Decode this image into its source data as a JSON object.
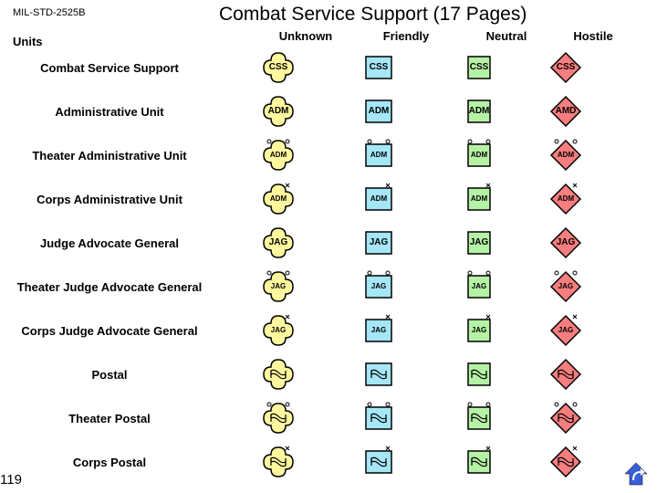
{
  "doc_id": "MIL-STD-2525B",
  "title": "Combat Service Support (17 Pages)",
  "section": "Units",
  "page_num": "119",
  "columns": [
    {
      "key": "unknown",
      "label": "Unknown"
    },
    {
      "key": "friendly",
      "label": "Friendly"
    },
    {
      "key": "neutral",
      "label": "Neutral"
    },
    {
      "key": "hostile",
      "label": "Hostile"
    }
  ],
  "affiliation_colors": {
    "unknown": {
      "fill": "#fff89e",
      "stroke": "#000000"
    },
    "friendly": {
      "fill": "#a5e6f7",
      "stroke": "#000000"
    },
    "neutral": {
      "fill": "#b6f2a6",
      "stroke": "#000000"
    },
    "hostile": {
      "fill": "#f77e7e",
      "stroke": "#000000"
    }
  },
  "rows": [
    {
      "label": "Combat Service Support",
      "text": "CSS",
      "graphic": "none",
      "echelon": "none"
    },
    {
      "label": "Administrative Unit",
      "text": "ADM",
      "graphic": "none",
      "echelon": "none",
      "hostile_text": "AMD"
    },
    {
      "label": "Theater Administrative Unit",
      "text": "ADM",
      "text_small": true,
      "graphic": "none",
      "echelon": "theater"
    },
    {
      "label": "Corps Administrative Unit",
      "text": "ADM",
      "text_small": true,
      "graphic": "none",
      "echelon": "corps"
    },
    {
      "label": "Judge Advocate General",
      "text": "JAG",
      "graphic": "none",
      "echelon": "none"
    },
    {
      "label": "Theater Judge Advocate General",
      "text": "JAG",
      "text_small": true,
      "graphic": "none",
      "echelon": "theater"
    },
    {
      "label": "Corps Judge Advocate General",
      "text": "JAG",
      "text_small": true,
      "graphic": "none",
      "echelon": "corps"
    },
    {
      "label": "Postal",
      "text": "",
      "graphic": "postal",
      "echelon": "none"
    },
    {
      "label": "Theater Postal",
      "text": "",
      "graphic": "postal",
      "echelon": "theater"
    },
    {
      "label": "Corps Postal",
      "text": "",
      "graphic": "postal",
      "echelon": "corps"
    }
  ],
  "corner_icon_color": "#3a5fd8"
}
